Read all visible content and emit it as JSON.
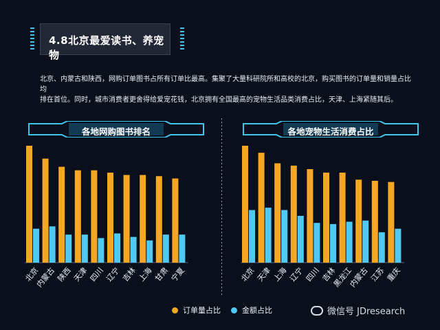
{
  "section_title": "4.8北京最爱读书、养宠物",
  "intro_lines": [
    "北京、内蒙古和陕西，网购订单图书占所有订单比最高。集聚了大量科研院所和高校的北京，购买图书的订单量和销量占比均",
    "排在首位。同时，城市消费者更舍得给爱宠花钱，北京拥有全国最高的宠物生活品类消费占比，天津、上海紧随其后。"
  ],
  "legend": {
    "orders": "订单量占比",
    "amount": "金额占比"
  },
  "watermark": "微信号 JDresearch",
  "colors": {
    "orders": "#f5a623",
    "amount": "#4fc9f1",
    "accent": "#3fc6ee",
    "background": "#0b0f1c"
  },
  "chart_data": [
    {
      "type": "bar",
      "title": "各地网购图书排名",
      "categories": [
        "北京",
        "内蒙古",
        "陕西",
        "天津",
        "四川",
        "辽宁",
        "吉林",
        "上海",
        "甘肃",
        "宁夏"
      ],
      "series": [
        {
          "name": "订单量占比",
          "values": [
            100,
            89,
            82,
            79,
            79,
            77,
            75,
            75,
            74,
            72
          ]
        },
        {
          "name": "金额占比",
          "values": [
            29,
            31,
            24,
            24,
            21,
            25,
            22,
            19,
            24,
            24
          ]
        }
      ],
      "ylim": [
        0,
        100
      ]
    },
    {
      "type": "bar",
      "title": "各地宠物生活消费占比",
      "categories": [
        "北京",
        "天津",
        "上海",
        "辽宁",
        "四川",
        "吉林",
        "黑龙江",
        "内蒙古",
        "江苏",
        "重庆"
      ],
      "series": [
        {
          "name": "订单量占比",
          "values": [
            100,
            94,
            85,
            83,
            80,
            77,
            77,
            71,
            70,
            69
          ]
        },
        {
          "name": "金额占比",
          "values": [
            45,
            47,
            45,
            40,
            34,
            33,
            35,
            36,
            26,
            29
          ]
        }
      ],
      "ylim": [
        0,
        100
      ]
    }
  ]
}
